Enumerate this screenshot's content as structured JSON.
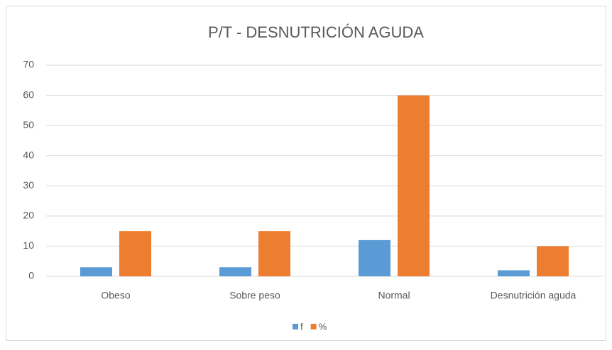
{
  "chart_data": {
    "type": "bar",
    "title": "P/T - DESNUTRICIÓN AGUDA",
    "categories": [
      "Obeso",
      "Sobre peso",
      "Normal",
      "Desnutrición aguda"
    ],
    "series": [
      {
        "name": "f",
        "color": "#5b9bd5",
        "values": [
          3,
          3,
          12,
          2
        ]
      },
      {
        "name": "%",
        "color": "#ed7d31",
        "values": [
          15,
          15,
          60,
          10
        ]
      }
    ],
    "ylim": [
      0,
      70
    ],
    "yticks": [
      0,
      10,
      20,
      30,
      40,
      50,
      60,
      70
    ],
    "grid": true,
    "legend": "bottom"
  }
}
